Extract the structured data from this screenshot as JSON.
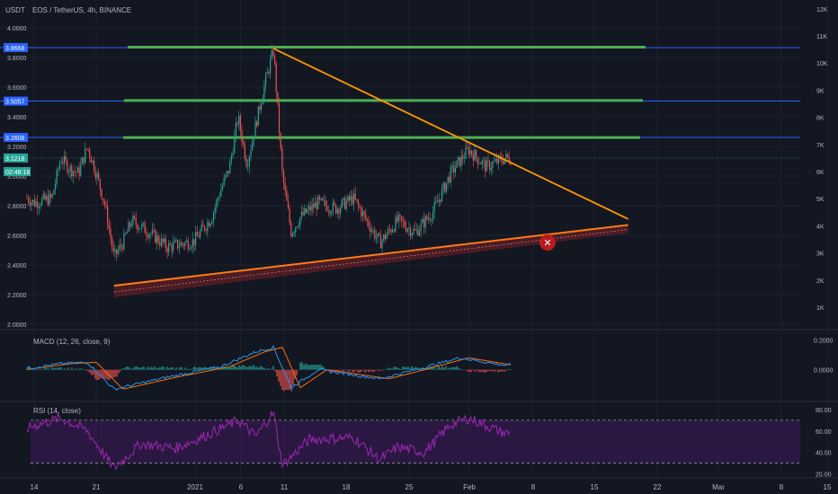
{
  "header": {
    "currency": "USDT",
    "symbol": "EOS / TetherUS, 4h, BINANCE"
  },
  "colors": {
    "background": "#131722",
    "up": "#26a69a",
    "down": "#ef5350",
    "grid": "#1e222d",
    "text": "#b2b5be",
    "resistance": "#4caf50",
    "hline": "#2962ff",
    "downtrend": "#ff9800",
    "support": "#ff7a1a",
    "macd": "#2196f3",
    "signal": "#ff6d00",
    "rsi": "#9c27b0"
  },
  "price_axis": {
    "ticks": [
      "4.0000",
      "3.8000",
      "3.6000",
      "3.4000",
      "3.2000",
      "3.0000",
      "2.8000",
      "2.6000",
      "2.4000",
      "2.2000",
      "2.0000"
    ],
    "badges": [
      {
        "label": "3.8668",
        "value": 3.8668
      },
      {
        "label": "3.5057",
        "value": 3.5057
      },
      {
        "label": "3.2608",
        "value": 3.2608
      },
      {
        "label": "3.1218",
        "value": 3.1218
      },
      {
        "label": "02:48:18",
        "value": 3.03
      }
    ]
  },
  "volume_axis": {
    "ticks": [
      "12K",
      "11K",
      "10K",
      "9K",
      "8K",
      "7K",
      "6K",
      "5K",
      "4K",
      "3K",
      "2K",
      "1K"
    ]
  },
  "date_axis": {
    "labels": [
      "14",
      "21",
      "2021",
      "6",
      "11",
      "18",
      "25",
      "Feb",
      "8",
      "15",
      "22",
      "Mar",
      "8",
      "15"
    ]
  },
  "macd": {
    "title": "MACD (12, 26, close, 9)",
    "ticks": [
      "0.2000",
      "0.0000"
    ]
  },
  "rsi": {
    "title": "RSI (14, close)",
    "ticks": [
      "80.00",
      "60.00",
      "40.00",
      "20.00"
    ],
    "upper_band": 70,
    "lower_band": 30
  },
  "chart_data": {
    "type": "candlestick",
    "title": "EOS / TetherUS, 4h, BINANCE",
    "ylim": [
      1.9,
      4.05
    ],
    "price_path": [
      [
        "2020-12-12",
        2.83
      ],
      [
        "2020-12-13",
        2.86
      ],
      [
        "2020-12-14",
        2.82
      ],
      [
        "2020-12-16",
        2.85
      ],
      [
        "2020-12-17",
        3.12
      ],
      [
        "2020-12-18",
        3.05
      ],
      [
        "2020-12-19",
        3.02
      ],
      [
        "2020-12-20",
        3.2
      ],
      [
        "2020-12-21",
        3.02
      ],
      [
        "2020-12-22",
        2.8
      ],
      [
        "2020-12-23",
        2.45
      ],
      [
        "2020-12-24",
        2.55
      ],
      [
        "2020-12-25",
        2.7
      ],
      [
        "2020-12-27",
        2.62
      ],
      [
        "2020-12-29",
        2.52
      ],
      [
        "2021-01-01",
        2.56
      ],
      [
        "2021-01-03",
        2.72
      ],
      [
        "2021-01-04",
        2.9
      ],
      [
        "2021-01-05",
        3.05
      ],
      [
        "2021-01-06",
        3.4
      ],
      [
        "2021-01-07",
        3.08
      ],
      [
        "2021-01-09",
        3.62
      ],
      [
        "2021-01-10",
        3.85
      ],
      [
        "2021-01-11",
        3.0
      ],
      [
        "2021-01-12",
        2.62
      ],
      [
        "2021-01-13",
        2.72
      ],
      [
        "2021-01-15",
        2.82
      ],
      [
        "2021-01-17",
        2.78
      ],
      [
        "2021-01-19",
        2.85
      ],
      [
        "2021-01-21",
        2.65
      ],
      [
        "2021-01-22",
        2.55
      ],
      [
        "2021-01-24",
        2.7
      ],
      [
        "2021-01-26",
        2.62
      ],
      [
        "2021-01-28",
        2.76
      ],
      [
        "2021-01-30",
        3.02
      ],
      [
        "2021-02-01",
        3.18
      ],
      [
        "2021-02-03",
        3.06
      ],
      [
        "2021-02-05",
        3.12
      ]
    ],
    "horizontal_lines": [
      3.8668,
      3.5057,
      3.2608
    ],
    "resistance_zones": [
      3.87,
      3.51,
      3.26
    ],
    "downtrend_line": {
      "from": [
        "2021-01-10",
        3.86
      ],
      "to": [
        "2021-02-19",
        2.71
      ]
    },
    "support_line": {
      "from": [
        "2020-12-23",
        2.26
      ],
      "to": [
        "2021-02-19",
        2.67
      ]
    },
    "macd_ylim": [
      -0.2,
      0.22
    ],
    "macd_path": [
      [
        "2020-12-12",
        0.0
      ],
      [
        "2020-12-17",
        0.04
      ],
      [
        "2020-12-20",
        0.05
      ],
      [
        "2020-12-23",
        -0.13
      ],
      [
        "2020-12-29",
        -0.05
      ],
      [
        "2021-01-04",
        0.02
      ],
      [
        "2021-01-08",
        0.12
      ],
      [
        "2021-01-10",
        0.15
      ],
      [
        "2021-01-12",
        -0.12
      ],
      [
        "2021-01-15",
        0.0
      ],
      [
        "2021-01-22",
        -0.06
      ],
      [
        "2021-01-26",
        0.0
      ],
      [
        "2021-01-31",
        0.08
      ],
      [
        "2021-02-05",
        0.03
      ]
    ],
    "rsi_ylim": [
      18,
      85
    ],
    "rsi_path": [
      [
        "2020-12-12",
        58
      ],
      [
        "2020-12-14",
        65
      ],
      [
        "2020-12-17",
        72
      ],
      [
        "2020-12-20",
        60
      ],
      [
        "2020-12-23",
        25
      ],
      [
        "2020-12-26",
        48
      ],
      [
        "2020-12-30",
        44
      ],
      [
        "2021-01-03",
        58
      ],
      [
        "2021-01-06",
        70
      ],
      [
        "2021-01-08",
        55
      ],
      [
        "2021-01-10",
        77
      ],
      [
        "2021-01-11",
        28
      ],
      [
        "2021-01-14",
        52
      ],
      [
        "2021-01-19",
        54
      ],
      [
        "2021-01-22",
        33
      ],
      [
        "2021-01-24",
        45
      ],
      [
        "2021-01-27",
        40
      ],
      [
        "2021-01-30",
        66
      ],
      [
        "2021-02-01",
        72
      ],
      [
        "2021-02-05",
        58
      ]
    ]
  }
}
